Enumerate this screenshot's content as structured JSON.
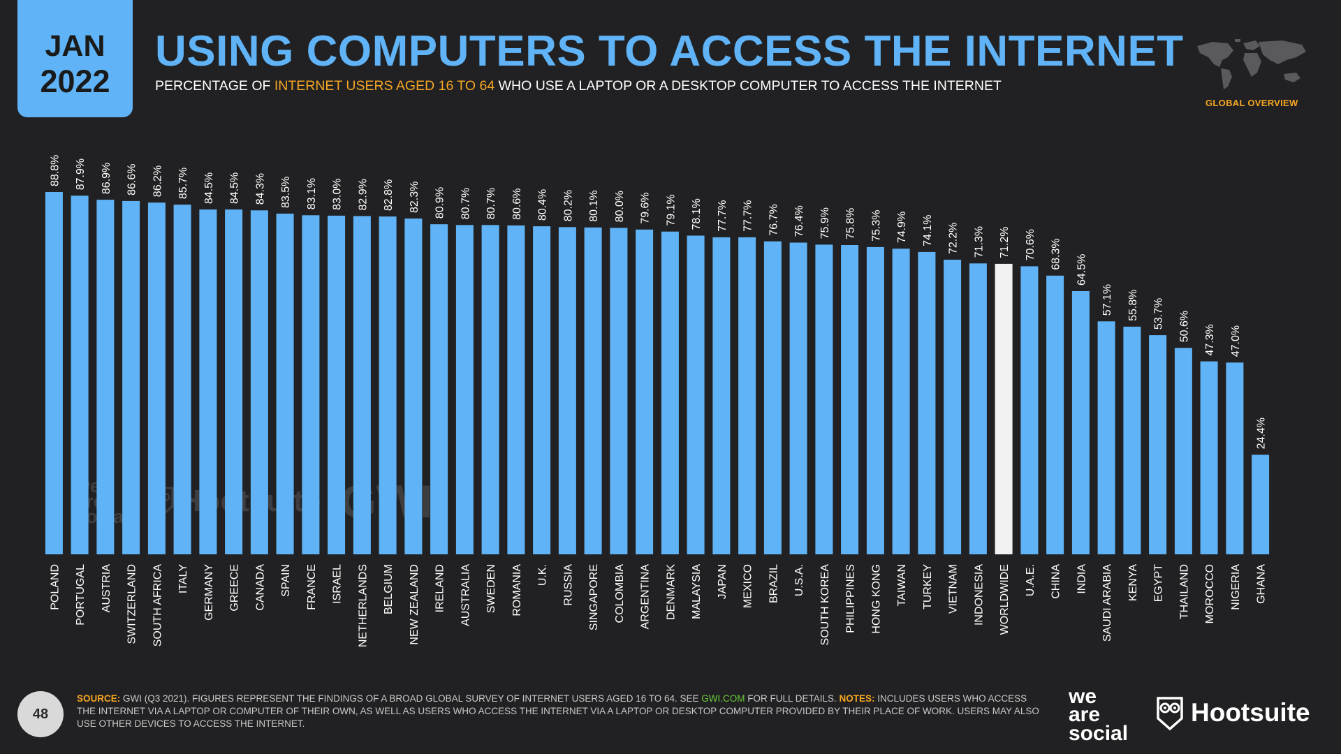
{
  "header": {
    "badge_month": "JAN",
    "badge_year": "2022",
    "title": "USING COMPUTERS TO ACCESS THE INTERNET",
    "subtitle_pre": "PERCENTAGE OF ",
    "subtitle_highlight": "INTERNET USERS AGED 16 TO 64",
    "subtitle_post": " WHO USE A LAPTOP OR A DESKTOP COMPUTER TO ACCESS THE INTERNET",
    "section_label": "GLOBAL OVERVIEW"
  },
  "colors": {
    "background": "#212123",
    "accent_blue": "#5FB3F6",
    "highlight_bar": "#F2F2F2",
    "orange": "#F6A623",
    "green": "#6BCB3A"
  },
  "chart_data": {
    "type": "bar",
    "categories": [
      "POLAND",
      "PORTUGAL",
      "AUSTRIA",
      "SWITZERLAND",
      "SOUTH AFRICA",
      "ITALY",
      "GERMANY",
      "GREECE",
      "CANADA",
      "SPAIN",
      "FRANCE",
      "ISRAEL",
      "NETHERLANDS",
      "BELGIUM",
      "NEW ZEALAND",
      "IRELAND",
      "AUSTRALIA",
      "SWEDEN",
      "ROMANIA",
      "U.K.",
      "RUSSIA",
      "SINGAPORE",
      "COLOMBIA",
      "ARGENTINA",
      "DENMARK",
      "MALAYSIA",
      "JAPAN",
      "MEXICO",
      "BRAZIL",
      "U.S.A.",
      "SOUTH KOREA",
      "PHILIPPINES",
      "HONG KONG",
      "TAIWAN",
      "TURKEY",
      "VIETNAM",
      "INDONESIA",
      "WORLDWIDE",
      "U.A.E.",
      "CHINA",
      "INDIA",
      "SAUDI ARABIA",
      "KENYA",
      "EGYPT",
      "THAILAND",
      "MOROCCO",
      "NIGERIA",
      "GHANA"
    ],
    "values": [
      88.8,
      87.9,
      86.9,
      86.6,
      86.2,
      85.7,
      84.5,
      84.5,
      84.3,
      83.5,
      83.1,
      83.0,
      82.9,
      82.8,
      82.3,
      80.9,
      80.7,
      80.7,
      80.6,
      80.4,
      80.2,
      80.1,
      80.0,
      79.6,
      79.1,
      78.1,
      77.7,
      77.7,
      76.7,
      76.4,
      75.9,
      75.8,
      75.3,
      74.9,
      74.1,
      72.2,
      71.3,
      71.2,
      70.6,
      68.3,
      64.5,
      57.1,
      55.8,
      53.7,
      50.6,
      47.3,
      47.0,
      24.4
    ],
    "value_labels": [
      "88.8%",
      "87.9%",
      "86.9%",
      "86.6%",
      "86.2%",
      "85.7%",
      "84.5%",
      "84.5%",
      "84.3%",
      "83.5%",
      "83.1%",
      "83.0%",
      "82.9%",
      "82.8%",
      "82.3%",
      "80.9%",
      "80.7%",
      "80.7%",
      "80.6%",
      "80.4%",
      "80.2%",
      "80.1%",
      "80.0%",
      "79.6%",
      "79.1%",
      "78.1%",
      "77.7%",
      "77.7%",
      "76.7%",
      "76.4%",
      "75.9%",
      "75.8%",
      "75.3%",
      "74.9%",
      "74.1%",
      "72.2%",
      "71.3%",
      "71.2%",
      "70.6%",
      "68.3%",
      "64.5%",
      "57.1%",
      "55.8%",
      "53.7%",
      "50.6%",
      "47.3%",
      "47.0%",
      "24.4%"
    ],
    "highlight_category": "WORLDWIDE",
    "ylim": [
      0,
      100
    ],
    "grid": false,
    "legend": "none"
  },
  "watermark": {
    "was": [
      "we",
      "are",
      "social"
    ],
    "hootsuite": "Hootsuite",
    "gwi": "GWI."
  },
  "footer": {
    "page_number": "48",
    "source_label": "SOURCE:",
    "source_text_1": " GWI (Q3 2021). FIGURES REPRESENT THE FINDINGS OF A BROAD GLOBAL SURVEY OF INTERNET USERS AGED 16 TO 64. SEE ",
    "source_link": "GWI.COM",
    "source_text_2": " FOR FULL DETAILS. ",
    "notes_label": "NOTES:",
    "notes_text": " INCLUDES USERS WHO ACCESS THE INTERNET VIA A LAPTOP OR COMPUTER OF THEIR OWN, AS WELL AS USERS WHO ACCESS THE INTERNET VIA A LAPTOP OR DESKTOP COMPUTER PROVIDED BY THEIR PLACE OF WORK. USERS MAY ALSO USE OTHER DEVICES TO ACCESS THE INTERNET.",
    "logo_was_1": "we",
    "logo_was_2": "are",
    "logo_was_3": "social",
    "logo_hootsuite": "Hootsuite"
  }
}
